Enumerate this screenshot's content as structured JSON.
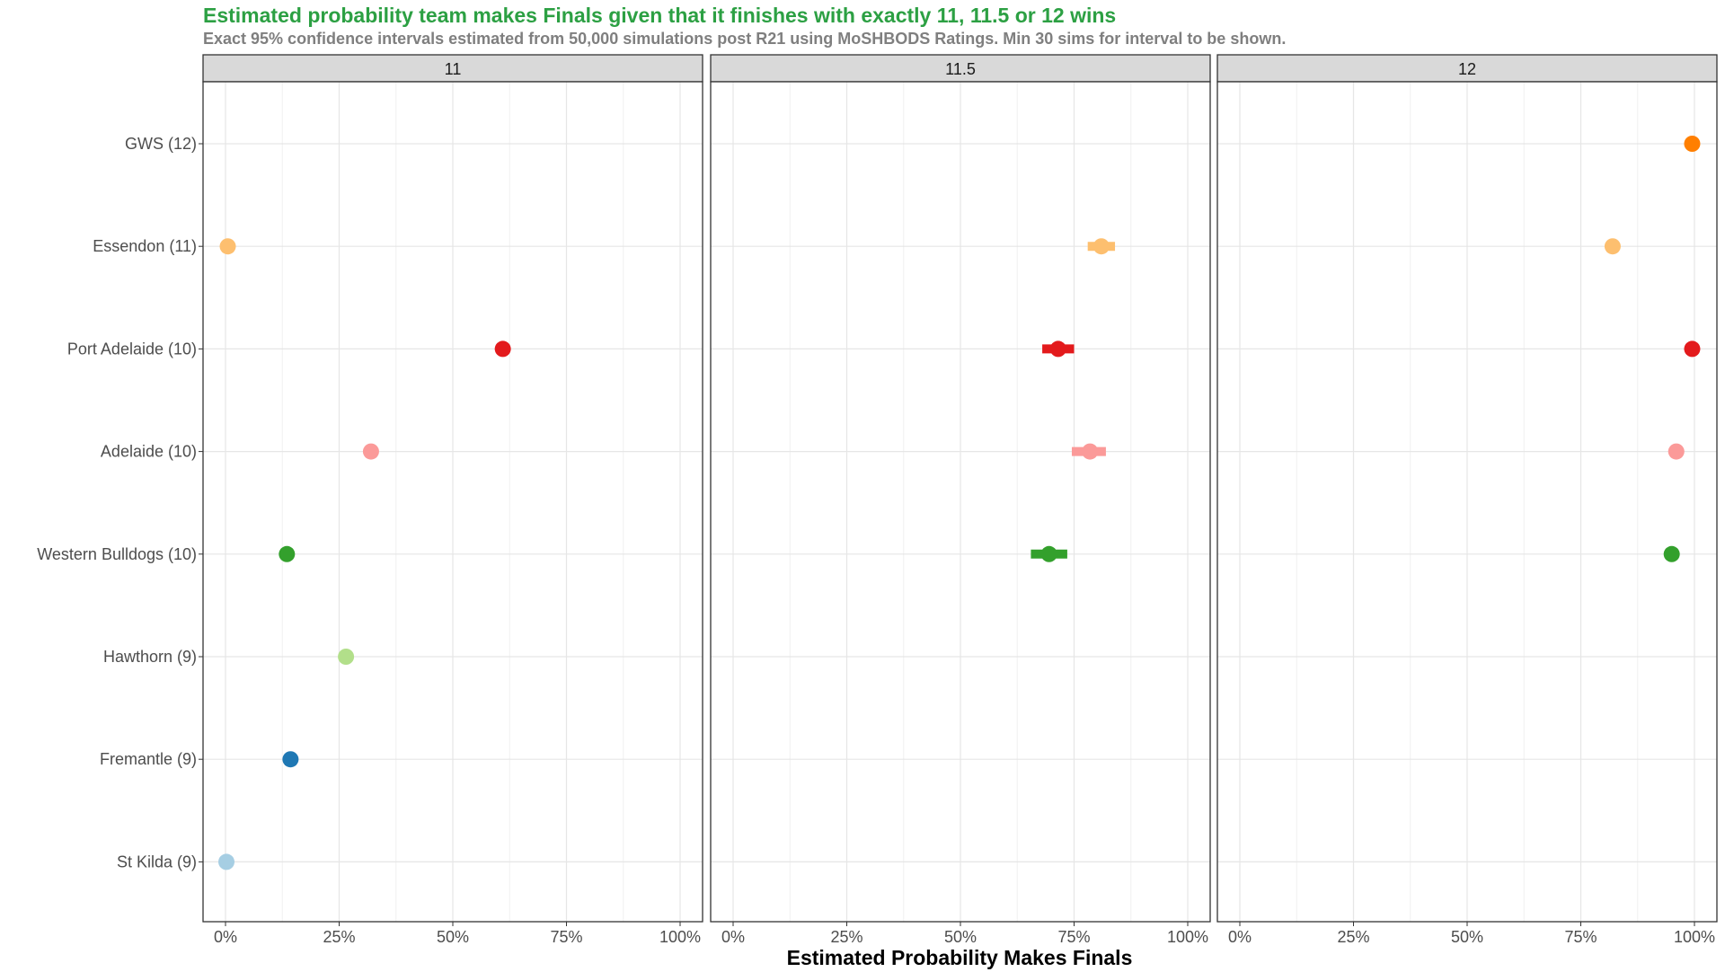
{
  "chart_data": {
    "type": "scatter",
    "title": "Estimated probability team makes Finals given that it finishes with exactly 11, 11.5 or 12 wins",
    "subtitle": "Exact 95% confidence intervals estimated from 50,000 simulations post R21 using MoSHBODS Ratings. Min 30 sims for interval to be shown.",
    "xlabel": "Estimated Probability Makes Finals",
    "ylabel": "",
    "xlim": [
      0,
      1
    ],
    "x_ticks": [
      0,
      0.25,
      0.5,
      0.75,
      1
    ],
    "x_tick_labels": [
      "0%",
      "25%",
      "50%",
      "75%",
      "100%"
    ],
    "grid": true,
    "legend": "none",
    "teams": [
      "GWS (12)",
      "Essendon (11)",
      "Port Adelaide (10)",
      "Adelaide (10)",
      "Western Bulldogs (10)",
      "Hawthorn (9)",
      "Fremantle (9)",
      "St Kilda (9)"
    ],
    "team_colors": {
      "GWS (12)": "#ff7f00",
      "Essendon (11)": "#fdbf6f",
      "Port Adelaide (10)": "#e31a1c",
      "Adelaide (10)": "#fb9a99",
      "Western Bulldogs (10)": "#33a02c",
      "Hawthorn (9)": "#b2df8a",
      "Fremantle (9)": "#1f78b4",
      "St Kilda (9)": "#a6cee3"
    },
    "panels": [
      {
        "label": "11",
        "points": [
          {
            "team": "Essendon (11)",
            "x": 0.005
          },
          {
            "team": "Port Adelaide (10)",
            "x": 0.61
          },
          {
            "team": "Adelaide (10)",
            "x": 0.32
          },
          {
            "team": "Western Bulldogs (10)",
            "x": 0.135
          },
          {
            "team": "Hawthorn (9)",
            "x": 0.265
          },
          {
            "team": "Fremantle (9)",
            "x": 0.143
          },
          {
            "team": "St Kilda (9)",
            "x": 0.002
          }
        ]
      },
      {
        "label": "11.5",
        "points": [
          {
            "team": "Essendon (11)",
            "x": 0.81,
            "lo": 0.78,
            "hi": 0.84
          },
          {
            "team": "Port Adelaide (10)",
            "x": 0.715,
            "lo": 0.68,
            "hi": 0.75
          },
          {
            "team": "Adelaide (10)",
            "x": 0.785,
            "lo": 0.745,
            "hi": 0.82
          },
          {
            "team": "Western Bulldogs (10)",
            "x": 0.695,
            "lo": 0.655,
            "hi": 0.735
          }
        ]
      },
      {
        "label": "12",
        "points": [
          {
            "team": "GWS (12)",
            "x": 0.995
          },
          {
            "team": "Essendon (11)",
            "x": 0.82
          },
          {
            "team": "Port Adelaide (10)",
            "x": 0.995
          },
          {
            "team": "Adelaide (10)",
            "x": 0.96
          },
          {
            "team": "Western Bulldogs (10)",
            "x": 0.95
          }
        ]
      }
    ]
  }
}
